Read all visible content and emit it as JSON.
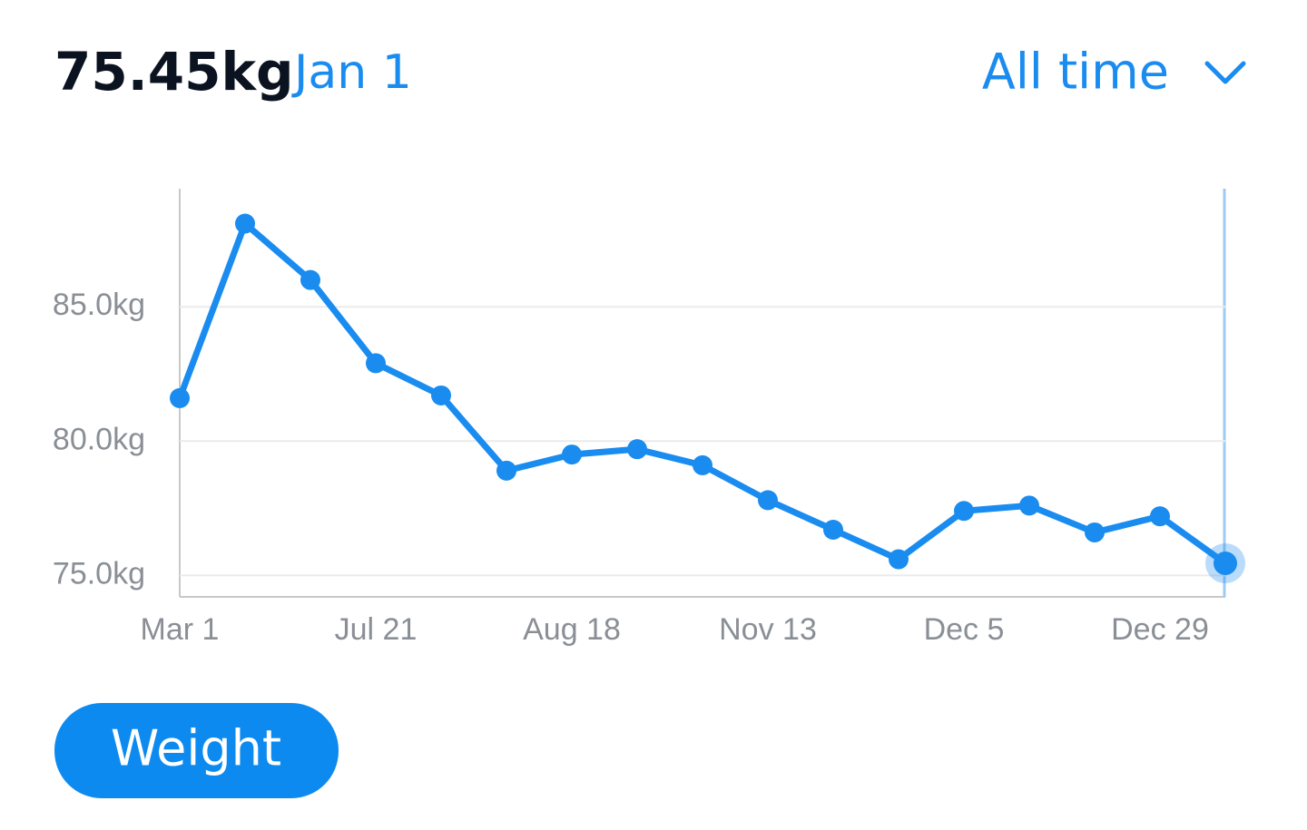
{
  "header": {
    "value": "75.45kg",
    "date": "Jan 1",
    "range": "All time"
  },
  "chip": {
    "label": "Weight"
  },
  "chart_data": {
    "type": "line",
    "categories": [
      "Mar 1",
      null,
      null,
      "Jul 21",
      null,
      null,
      "Aug 18",
      null,
      null,
      "Nov 13",
      null,
      null,
      "Dec 5",
      null,
      null,
      "Dec 29",
      null
    ],
    "values": [
      81.6,
      88.1,
      86.0,
      82.9,
      81.7,
      78.9,
      79.5,
      79.7,
      79.1,
      77.8,
      76.7,
      75.6,
      77.4,
      77.6,
      76.6,
      77.2,
      75.45
    ],
    "color": "#1a8cf0",
    "ylim": [
      74.2,
      89.4
    ],
    "yticks": [
      {
        "value": 75,
        "label": "75.0kg"
      },
      {
        "value": 80,
        "label": "80.0kg"
      },
      {
        "value": 85,
        "label": "85.0kg"
      }
    ],
    "grid": true
  }
}
